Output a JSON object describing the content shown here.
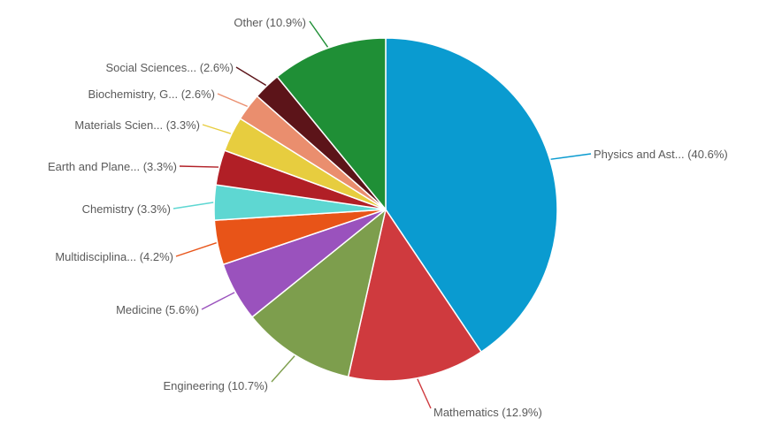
{
  "chart_data": {
    "type": "pie",
    "title": "",
    "start_angle_deg": 0,
    "direction": "clockwise",
    "slices": [
      {
        "label": "Physics and Ast... (40.6%)",
        "value": 40.6,
        "color": "#0a9bd0"
      },
      {
        "label": "Mathematics (12.9%)",
        "value": 12.9,
        "color": "#cf3a3e"
      },
      {
        "label": "Engineering (10.7%)",
        "value": 10.7,
        "color": "#7d9e4d"
      },
      {
        "label": "Medicine (5.6%)",
        "value": 5.6,
        "color": "#9a52bd"
      },
      {
        "label": "Multidisciplina... (4.2%)",
        "value": 4.2,
        "color": "#e85418"
      },
      {
        "label": "Chemistry (3.3%)",
        "value": 3.3,
        "color": "#5ed7d2"
      },
      {
        "label": "Earth and Plane... (3.3%)",
        "value": 3.3,
        "color": "#b11f26"
      },
      {
        "label": "Materials Scien... (3.3%)",
        "value": 3.3,
        "color": "#e7cd3f"
      },
      {
        "label": "Biochemistry, G... (2.6%)",
        "value": 2.6,
        "color": "#ea8e6e"
      },
      {
        "label": "Social Sciences... (2.6%)",
        "value": 2.6,
        "color": "#5c1419"
      },
      {
        "label": "Other (10.9%)",
        "value": 10.9,
        "color": "#1f8f36"
      }
    ]
  }
}
